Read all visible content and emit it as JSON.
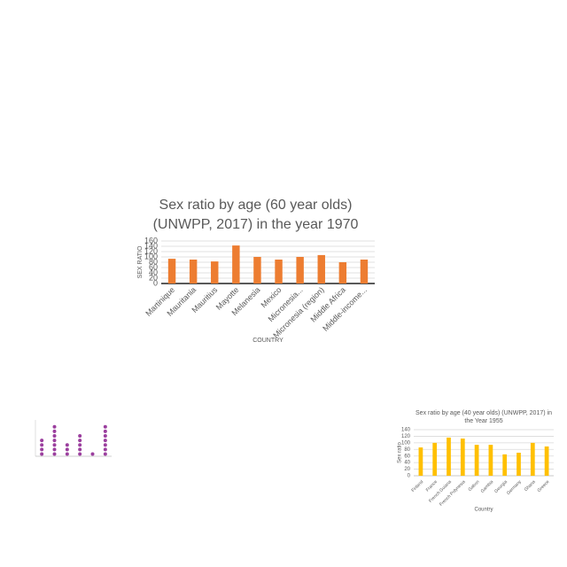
{
  "chart_data": [
    {
      "type": "bar",
      "title": [
        "Sex ratio by age (60 year olds)",
        "(UNWPP, 2017) in the year 1970"
      ],
      "y_label": "SEX RATIO",
      "x_label": "COUNTRY",
      "categories": [
        "Martinique",
        "Mauritania",
        "Mauritius",
        "Mayotte",
        "Melanesia",
        "Mexico",
        "Micronesia...",
        "Micronesia (region)",
        "Middle Africa",
        "Middle-income..."
      ],
      "values": [
        93,
        90,
        83,
        143,
        100,
        90,
        100,
        107,
        80,
        90
      ],
      "color": "#ed7d31",
      "ylim": [
        0,
        160
      ],
      "yticks": [
        0,
        20,
        40,
        60,
        80,
        100,
        120,
        140,
        160
      ],
      "grid": true
    },
    {
      "type": "dot",
      "categories": [
        null,
        null,
        null,
        null,
        null,
        null
      ],
      "values": [
        4,
        7,
        3,
        5,
        1,
        7
      ],
      "color": "#9b3f9e",
      "ylim": [
        0,
        8
      ],
      "grid": false
    },
    {
      "type": "bar",
      "title": [
        "Sex ratio by age (40 year olds) (UNWPP, 2017) in",
        "the Year 1955"
      ],
      "y_label": "Sex ratio",
      "x_label": "Country",
      "categories": [
        "Finland",
        "France",
        "French Guiana",
        "French Polynesia",
        "Gabon",
        "Gambia",
        "Georgia",
        "Germany",
        "Ghana",
        "Greece"
      ],
      "values": [
        86,
        100,
        116,
        113,
        94,
        94,
        65,
        70,
        100,
        89
      ],
      "color": "#ffc000",
      "ylim": [
        0,
        140
      ],
      "yticks": [
        0,
        20,
        40,
        60,
        80,
        100,
        120,
        140
      ],
      "grid": true
    }
  ]
}
